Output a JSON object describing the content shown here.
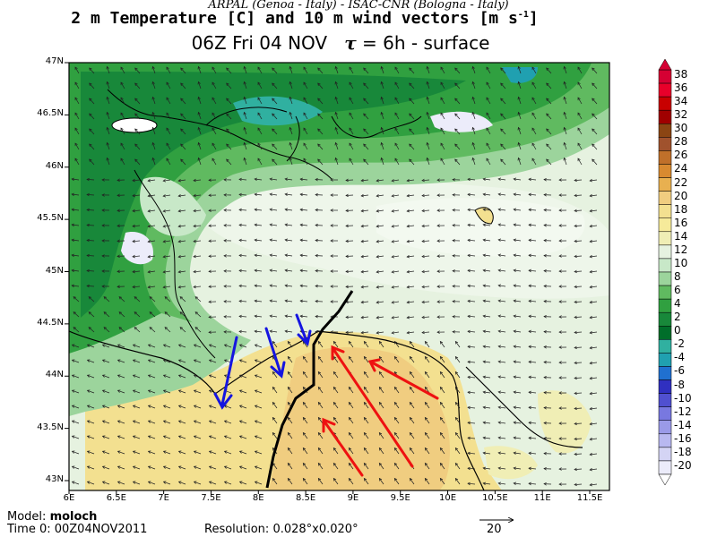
{
  "header": {
    "institutions": "ARPAL (Genoa - Italy)   -   ISAC-CNR (Bologna - Italy)",
    "title_main": "2 m Temperature [C] and 10 m wind vectors [m s",
    "title_exp": "-1",
    "title_close": "]",
    "time_label": "06Z Fri 04 NOV",
    "tau_symbol": "τ",
    "tau_value": "= 6h  -  surface"
  },
  "axes": {
    "lat_labels": [
      "47N",
      "46.5N",
      "46N",
      "45.5N",
      "45N",
      "44.5N",
      "44N",
      "43.5N",
      "43N"
    ],
    "lon_labels": [
      "6E",
      "6.5E",
      "7E",
      "7.5E",
      "8E",
      "8.5E",
      "9E",
      "9.5E",
      "10E",
      "10.5E",
      "11E",
      "11.5E"
    ]
  },
  "colorbar": {
    "labels": [
      "38",
      "36",
      "34",
      "32",
      "30",
      "28",
      "26",
      "24",
      "22",
      "20",
      "18",
      "16",
      "14",
      "12",
      "10",
      "8",
      "6",
      "4",
      "2",
      "0",
      "-2",
      "-4",
      "-6",
      "-8",
      "-10",
      "-12",
      "-14",
      "-16",
      "-18",
      "-20"
    ],
    "colors": [
      "#d50033",
      "#e8002a",
      "#c80000",
      "#a00000",
      "#8b4513",
      "#a0522d",
      "#c0702a",
      "#d88a30",
      "#e8b050",
      "#f0cd80",
      "#f3e090",
      "#f6ea9a",
      "#f0eeb5",
      "#e6f2e0",
      "#c8e8c8",
      "#9cd49c",
      "#60ba60",
      "#30a040",
      "#18883a",
      "#006e2a",
      "#30b0a0",
      "#20a0b0",
      "#2070d0",
      "#3030c0",
      "#5050d0",
      "#7878e0",
      "#9a9ae8",
      "#b8b8f0",
      "#d4d4f4",
      "#ececfa"
    ]
  },
  "footer": {
    "model_label": "Model:",
    "model_value": "moloch",
    "time0": "Time 0: 00Z04NOV2011",
    "resolution": "Resolution: 0.028°x0.020°",
    "ref_vector": "20"
  },
  "annotations": {
    "blue_arrows": 3,
    "red_arrows": 3,
    "black_line": "convergence line"
  }
}
